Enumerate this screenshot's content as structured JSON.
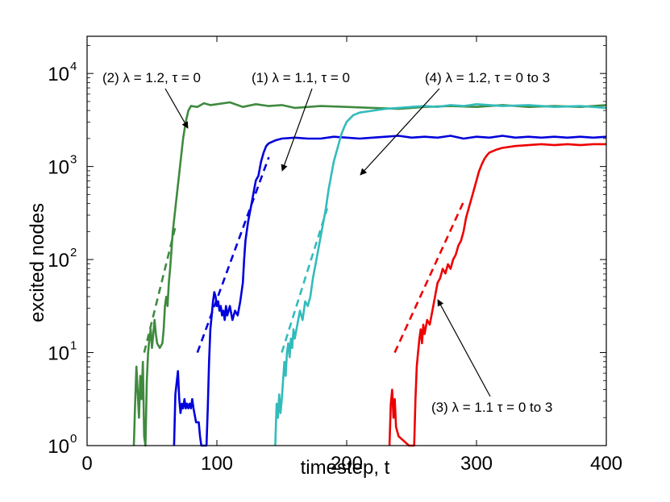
{
  "chart_data": {
    "type": "line",
    "title": "",
    "xlabel": "timestep, t",
    "ylabel": "excited nodes",
    "xlim": [
      0,
      400
    ],
    "ylim_log10": [
      0,
      4.4
    ],
    "y_scale": "log",
    "grid": false,
    "x_ticks": [
      {
        "value": 0,
        "label": "0"
      },
      {
        "value": 100,
        "label": "100"
      },
      {
        "value": 200,
        "label": "200"
      },
      {
        "value": 300,
        "label": "300"
      },
      {
        "value": 400,
        "label": "400"
      }
    ],
    "y_ticks": [
      {
        "exp": 0,
        "base": "10",
        "sup": "0"
      },
      {
        "exp": 1,
        "base": "10",
        "sup": "1"
      },
      {
        "exp": 2,
        "base": "10",
        "sup": "2"
      },
      {
        "exp": 3,
        "base": "10",
        "sup": "3"
      },
      {
        "exp": 4,
        "base": "10",
        "sup": "4"
      }
    ],
    "series": [
      {
        "name": "(2) λ = 1.2, τ = 0",
        "color": "#3f8a3f",
        "points": [
          [
            36,
            0
          ],
          [
            37,
            0.45
          ],
          [
            38,
            0.85
          ],
          [
            40,
            0.3
          ],
          [
            41,
            0.75
          ],
          [
            42,
            0.5
          ],
          [
            43,
            0.9
          ],
          [
            44,
            0.1
          ],
          [
            45,
            0
          ],
          [
            46,
            0.7
          ],
          [
            47,
            1.0
          ],
          [
            48,
            1.15
          ],
          [
            49,
            1.25
          ],
          [
            50,
            1.05
          ],
          [
            51,
            1.2
          ],
          [
            52,
            1.35
          ],
          [
            53,
            1.2
          ],
          [
            54,
            1.1
          ],
          [
            56,
            1.05
          ],
          [
            58,
            1.1
          ],
          [
            59,
            1.25
          ],
          [
            60,
            1.5
          ],
          [
            61,
            1.6
          ],
          [
            62,
            1.5
          ],
          [
            63,
            1.75
          ],
          [
            64,
            1.9
          ],
          [
            65,
            2.1
          ],
          [
            66,
            2.3
          ],
          [
            68,
            2.55
          ],
          [
            70,
            2.8
          ],
          [
            72,
            3.05
          ],
          [
            74,
            3.3
          ],
          [
            76,
            3.48
          ],
          [
            78,
            3.6
          ],
          [
            80,
            3.65
          ],
          [
            85,
            3.64
          ],
          [
            90,
            3.68
          ],
          [
            95,
            3.66
          ],
          [
            100,
            3.67
          ],
          [
            110,
            3.69
          ],
          [
            120,
            3.64
          ],
          [
            130,
            3.67
          ],
          [
            140,
            3.65
          ],
          [
            150,
            3.66
          ],
          [
            160,
            3.63
          ],
          [
            180,
            3.65
          ],
          [
            200,
            3.64
          ],
          [
            220,
            3.63
          ],
          [
            240,
            3.62
          ],
          [
            260,
            3.64
          ],
          [
            280,
            3.65
          ],
          [
            300,
            3.64
          ],
          [
            320,
            3.66
          ],
          [
            340,
            3.64
          ],
          [
            360,
            3.65
          ],
          [
            380,
            3.64
          ],
          [
            400,
            3.66
          ]
        ],
        "fit_line": [
          [
            44,
            1.0
          ],
          [
            68,
            2.35
          ]
        ]
      },
      {
        "name": "(1) λ = 1.1, τ = 0",
        "color": "#0000dd",
        "points": [
          [
            67,
            0
          ],
          [
            68,
            0.55
          ],
          [
            70,
            0.8
          ],
          [
            71,
            0.5
          ],
          [
            72,
            0.35
          ],
          [
            73,
            0.45
          ],
          [
            74,
            0.4
          ],
          [
            75,
            0.5
          ],
          [
            76,
            0.4
          ],
          [
            77,
            0.45
          ],
          [
            78,
            0.4
          ],
          [
            79,
            0.45
          ],
          [
            80,
            0.4
          ],
          [
            81,
            0.5
          ],
          [
            82,
            0.4
          ],
          [
            84,
            0.25
          ],
          [
            86,
            0.25
          ],
          [
            87,
            0.1
          ],
          [
            88,
            0
          ],
          [
            92,
            0
          ],
          [
            93,
            0.4
          ],
          [
            94,
            0.9
          ],
          [
            95,
            1.25
          ],
          [
            96,
            1.4
          ],
          [
            97,
            1.55
          ],
          [
            98,
            1.65
          ],
          [
            99,
            1.6
          ],
          [
            100,
            1.5
          ],
          [
            101,
            1.55
          ],
          [
            102,
            1.45
          ],
          [
            103,
            1.5
          ],
          [
            104,
            1.4
          ],
          [
            105,
            1.45
          ],
          [
            106,
            1.35
          ],
          [
            107,
            1.5
          ],
          [
            108,
            1.4
          ],
          [
            110,
            1.5
          ],
          [
            112,
            1.35
          ],
          [
            114,
            1.45
          ],
          [
            116,
            1.4
          ],
          [
            118,
            1.55
          ],
          [
            120,
            1.75
          ],
          [
            121,
            2.0
          ],
          [
            122,
            2.2
          ],
          [
            124,
            2.4
          ],
          [
            126,
            2.55
          ],
          [
            128,
            2.7
          ],
          [
            130,
            2.85
          ],
          [
            132,
            2.9
          ],
          [
            134,
            3.05
          ],
          [
            136,
            3.15
          ],
          [
            138,
            3.22
          ],
          [
            140,
            3.25
          ],
          [
            145,
            3.28
          ],
          [
            150,
            3.3
          ],
          [
            160,
            3.31
          ],
          [
            170,
            3.3
          ],
          [
            180,
            3.3
          ],
          [
            190,
            3.32
          ],
          [
            200,
            3.31
          ],
          [
            210,
            3.3
          ],
          [
            220,
            3.31
          ],
          [
            230,
            3.32
          ],
          [
            240,
            3.33
          ],
          [
            250,
            3.31
          ],
          [
            260,
            3.32
          ],
          [
            270,
            3.31
          ],
          [
            280,
            3.33
          ],
          [
            290,
            3.3
          ],
          [
            300,
            3.32
          ],
          [
            310,
            3.31
          ],
          [
            320,
            3.33
          ],
          [
            330,
            3.31
          ],
          [
            340,
            3.32
          ],
          [
            350,
            3.31
          ],
          [
            360,
            3.32
          ],
          [
            370,
            3.31
          ],
          [
            380,
            3.32
          ],
          [
            390,
            3.31
          ],
          [
            400,
            3.32
          ]
        ],
        "fit_line": [
          [
            85,
            1.0
          ],
          [
            140,
            3.1
          ]
        ]
      },
      {
        "name": "(4) λ = 1.2, τ = 0 to 3",
        "color": "#33bbbb",
        "points": [
          [
            145,
            0
          ],
          [
            146,
            0.45
          ],
          [
            147,
            0.3
          ],
          [
            148,
            0.55
          ],
          [
            149,
            0.35
          ],
          [
            150,
            0.5
          ],
          [
            151,
            0.7
          ],
          [
            152,
            0.9
          ],
          [
            153,
            0.75
          ],
          [
            154,
            1.0
          ],
          [
            155,
            1.1
          ],
          [
            156,
            0.95
          ],
          [
            157,
            1.15
          ],
          [
            158,
            1.05
          ],
          [
            159,
            1.25
          ],
          [
            160,
            1.15
          ],
          [
            162,
            1.3
          ],
          [
            164,
            1.45
          ],
          [
            166,
            1.35
          ],
          [
            168,
            1.55
          ],
          [
            170,
            1.5
          ],
          [
            172,
            1.6
          ],
          [
            174,
            1.8
          ],
          [
            176,
            1.95
          ],
          [
            178,
            2.1
          ],
          [
            180,
            2.25
          ],
          [
            182,
            2.4
          ],
          [
            184,
            2.55
          ],
          [
            186,
            2.75
          ],
          [
            188,
            2.9
          ],
          [
            190,
            3.05
          ],
          [
            192,
            3.15
          ],
          [
            194,
            3.25
          ],
          [
            196,
            3.35
          ],
          [
            198,
            3.42
          ],
          [
            200,
            3.48
          ],
          [
            205,
            3.55
          ],
          [
            210,
            3.58
          ],
          [
            220,
            3.6
          ],
          [
            230,
            3.62
          ],
          [
            240,
            3.63
          ],
          [
            250,
            3.64
          ],
          [
            260,
            3.65
          ],
          [
            270,
            3.64
          ],
          [
            280,
            3.66
          ],
          [
            290,
            3.65
          ],
          [
            300,
            3.67
          ],
          [
            320,
            3.65
          ],
          [
            340,
            3.66
          ],
          [
            360,
            3.64
          ],
          [
            380,
            3.65
          ],
          [
            400,
            3.63
          ]
        ],
        "fit_line": [
          [
            150,
            1.0
          ],
          [
            185,
            2.55
          ]
        ]
      },
      {
        "name": "(3) λ = 1.1 τ = 0 to 3",
        "color": "#ee0000",
        "points": [
          [
            233,
            0
          ],
          [
            234,
            0.45
          ],
          [
            235,
            0.6
          ],
          [
            236,
            0.3
          ],
          [
            237,
            0.5
          ],
          [
            238,
            0.2
          ],
          [
            240,
            0.1
          ],
          [
            244,
            0.05
          ],
          [
            248,
            0
          ],
          [
            252,
            0
          ],
          [
            253,
            0.5
          ],
          [
            254,
            0.85
          ],
          [
            255,
            1.0
          ],
          [
            256,
            1.15
          ],
          [
            257,
            1.25
          ],
          [
            258,
            1.1
          ],
          [
            259,
            1.3
          ],
          [
            260,
            1.2
          ],
          [
            262,
            1.35
          ],
          [
            264,
            1.3
          ],
          [
            266,
            1.45
          ],
          [
            268,
            1.6
          ],
          [
            270,
            1.75
          ],
          [
            272,
            1.8
          ],
          [
            274,
            1.9
          ],
          [
            276,
            1.85
          ],
          [
            278,
            1.95
          ],
          [
            280,
            1.9
          ],
          [
            282,
            2.0
          ],
          [
            284,
            2.05
          ],
          [
            286,
            2.15
          ],
          [
            288,
            2.2
          ],
          [
            290,
            2.3
          ],
          [
            292,
            2.45
          ],
          [
            294,
            2.55
          ],
          [
            296,
            2.65
          ],
          [
            298,
            2.75
          ],
          [
            300,
            2.85
          ],
          [
            302,
            2.95
          ],
          [
            304,
            3.02
          ],
          [
            306,
            3.08
          ],
          [
            308,
            3.12
          ],
          [
            310,
            3.15
          ],
          [
            315,
            3.18
          ],
          [
            320,
            3.2
          ],
          [
            330,
            3.22
          ],
          [
            340,
            3.23
          ],
          [
            350,
            3.24
          ],
          [
            360,
            3.23
          ],
          [
            370,
            3.24
          ],
          [
            380,
            3.23
          ],
          [
            390,
            3.24
          ],
          [
            400,
            3.24
          ]
        ],
        "fit_line": [
          [
            237,
            1.0
          ],
          [
            291,
            2.65
          ]
        ]
      }
    ],
    "annotations": [
      {
        "id": "label-2",
        "text": "(2) λ = 1.2, τ = 0",
        "series": 0
      },
      {
        "id": "label-1",
        "text": "(1) λ = 1.1, τ = 0",
        "series": 1
      },
      {
        "id": "label-4",
        "text": "(4) λ = 1.2, τ = 0 to 3",
        "series": 2
      },
      {
        "id": "label-3",
        "text": "(3) λ = 1.1 τ = 0 to 3",
        "series": 3
      }
    ]
  }
}
